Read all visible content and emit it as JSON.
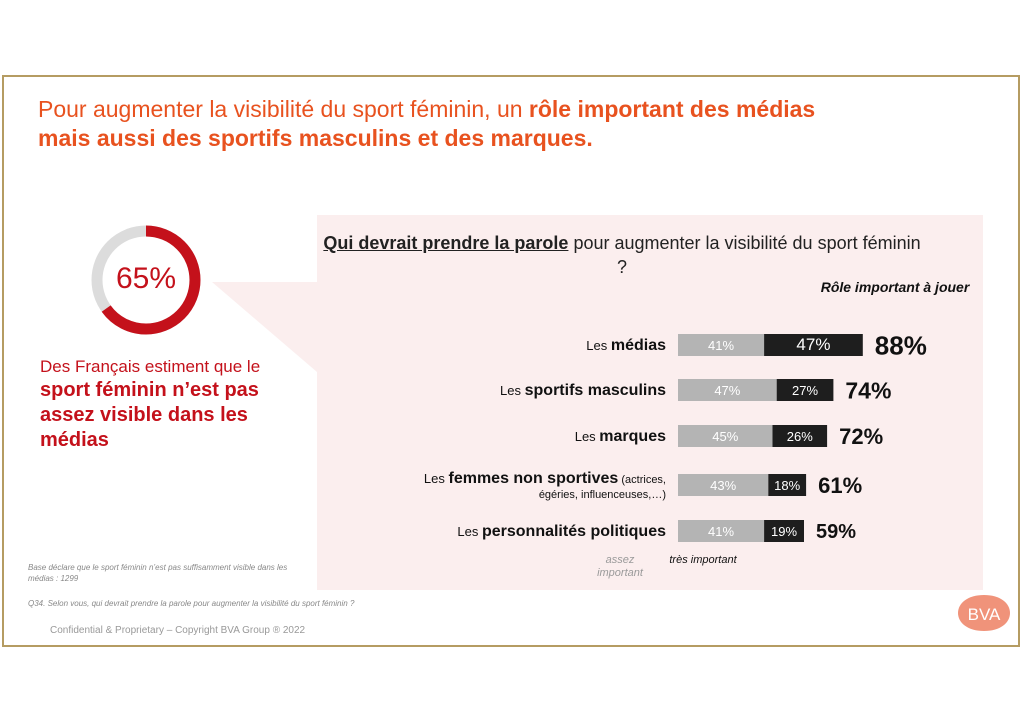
{
  "title": {
    "part1": "Pour augmenter la visibilité du sport féminin, un ",
    "part2": "rôle important des médias",
    "part3": "mais aussi des sportifs masculins et des marques."
  },
  "stat": {
    "percent": "65%",
    "value": 65,
    "text_normal": "Des Français estiment que le",
    "text_bold": "sport féminin n’est pas assez visible dans les médias"
  },
  "question": {
    "bold": "Qui devrait prendre la parole",
    "rest": " pour augmenter la visibilité du sport féminin ?"
  },
  "role_header": "Rôle important à jouer",
  "legend": {
    "assez": "assez important",
    "tres": "très important"
  },
  "notes": {
    "base": "Base déclare que le sport féminin n’est pas suffisamment visible dans les médias : 1299",
    "question": "Q34. Selon vous, qui devrait prendre la parole pour augmenter la visibilité du sport féminin ?",
    "footer": "Confidential & Proprietary – Copyright BVA Group ®  2022"
  },
  "logo_text": "BVA",
  "colors": {
    "title": "#e8521f",
    "stat": "#c4111b",
    "assez": "#b4b4b4",
    "tres": "#1e1e1e",
    "callout_bg": "#fbeeee",
    "frame": "#b59c62",
    "logo": "#f0937a"
  },
  "chart_data": {
    "type": "bar",
    "orientation": "horizontal",
    "stacked": true,
    "categories": [
      {
        "prefix": "Les ",
        "bold": "médias",
        "note": ""
      },
      {
        "prefix": "Les ",
        "bold": "sportifs masculins",
        "note": ""
      },
      {
        "prefix": "Les ",
        "bold": "marques",
        "note": ""
      },
      {
        "prefix": "Les ",
        "bold": "femmes non sportives",
        "note": " (actrices, égéries, influenceuses,…)"
      },
      {
        "prefix": "Les ",
        "bold": "personnalités politiques",
        "note": ""
      }
    ],
    "series": [
      {
        "values": [
          41,
          47,
          45,
          43,
          41
        ],
        "labels": [
          "41%",
          "47%",
          "45%",
          "43%",
          "41%"
        ]
      },
      {
        "values": [
          47,
          27,
          26,
          18,
          19
        ],
        "labels": [
          "47%",
          "27%",
          "26%",
          "18%",
          "19%"
        ]
      }
    ],
    "totals": [
      88,
      74,
      72,
      61,
      59
    ],
    "total_labels": [
      "88%",
      "74%",
      "72%",
      "61%",
      "59%"
    ]
  }
}
